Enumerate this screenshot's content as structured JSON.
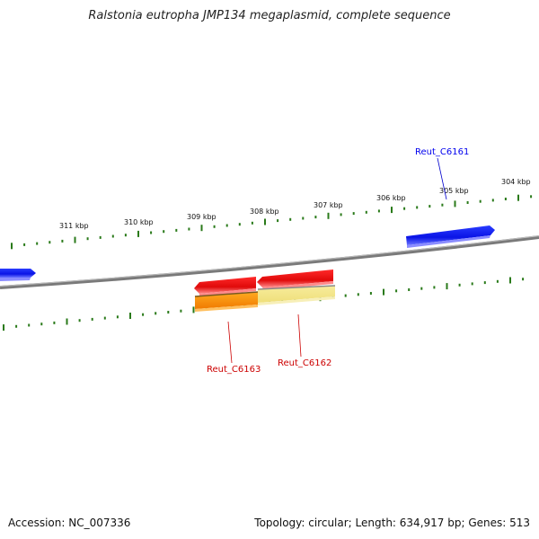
{
  "title": "Ralstonia eutropha JMP134 megaplasmid, complete sequence",
  "footer": {
    "accession": "Accession: NC_007336",
    "summary": "Topology: circular; Length: 634,917 bp; Genes: 513"
  },
  "scale": {
    "unit": "kbp",
    "tick_labels": [
      "311 kbp",
      "310 kbp",
      "309 kbp",
      "308 kbp",
      "307 kbp",
      "306 kbp",
      "305 kbp",
      "304 kbp"
    ]
  },
  "genes": [
    {
      "name": "Reut_C6161",
      "strand": "forward",
      "color": "#0000ee"
    },
    {
      "name": "Reut_C6162",
      "strand": "reverse",
      "color": "#ee0000"
    },
    {
      "name": "Reut_C6163",
      "strand": "reverse",
      "color": "#ee0000"
    }
  ],
  "colors": {
    "forward_gene": "#0a14e6",
    "reverse_gene": "#e61010",
    "backbone": "#888888",
    "ticks": "#2a7a1a",
    "orange_feature": "#ff9a10",
    "yellow_feature": "#f3e68a"
  }
}
